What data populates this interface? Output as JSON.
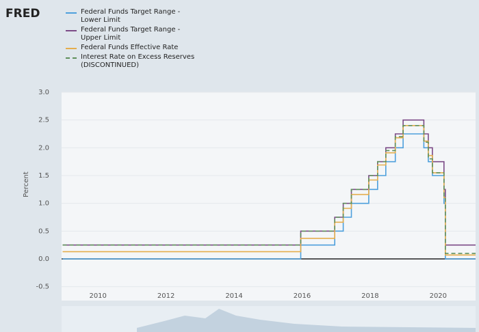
{
  "brand": "FRED",
  "chart_data": {
    "type": "line",
    "y_label": "Percent",
    "x": [
      2008.96,
      2015.96,
      2015.96,
      2016.96,
      2016.96,
      2017.21,
      2017.21,
      2017.45,
      2017.45,
      2017.96,
      2017.96,
      2018.22,
      2018.22,
      2018.46,
      2018.46,
      2018.74,
      2018.74,
      2018.97,
      2018.97,
      2019.58,
      2019.58,
      2019.71,
      2019.71,
      2019.83,
      2019.83,
      2020.17,
      2020.17,
      2020.21,
      2020.21,
      2021.1
    ],
    "series": [
      {
        "name": "Federal Funds Target Range - Lower Limit",
        "color": "#4d9fdc",
        "line_style": "solid",
        "values": [
          0,
          0,
          0.25,
          0.25,
          0.5,
          0.5,
          0.75,
          0.75,
          1.0,
          1.0,
          1.25,
          1.25,
          1.5,
          1.5,
          1.75,
          1.75,
          2.0,
          2.0,
          2.25,
          2.25,
          2.0,
          2.0,
          1.75,
          1.75,
          1.5,
          1.5,
          1.0,
          1.0,
          0,
          0
        ]
      },
      {
        "name": "Federal Funds Target Range - Upper Limit",
        "color": "#7b4a86",
        "line_style": "solid",
        "values": [
          0.25,
          0.25,
          0.5,
          0.5,
          0.75,
          0.75,
          1.0,
          1.0,
          1.25,
          1.25,
          1.5,
          1.5,
          1.75,
          1.75,
          2.0,
          2.0,
          2.25,
          2.25,
          2.5,
          2.5,
          2.25,
          2.25,
          2.0,
          2.0,
          1.75,
          1.75,
          1.25,
          1.25,
          0.25,
          0.25
        ]
      },
      {
        "name": "Federal Funds Effective Rate",
        "color": "#e5ad4c",
        "line_style": "solid",
        "values": [
          0.13,
          0.13,
          0.37,
          0.37,
          0.66,
          0.66,
          0.91,
          0.91,
          1.16,
          1.16,
          1.42,
          1.42,
          1.69,
          1.69,
          1.91,
          1.91,
          2.18,
          2.18,
          2.4,
          2.4,
          2.12,
          2.12,
          1.86,
          1.86,
          1.55,
          1.55,
          1.1,
          1.1,
          0.07,
          0.07
        ]
      },
      {
        "name": "Interest Rate on Excess Reserves (DISCONTINUED)",
        "color": "#5e8f5a",
        "line_style": "dashed",
        "values": [
          0.25,
          0.25,
          0.5,
          0.5,
          0.75,
          0.75,
          1.0,
          1.0,
          1.25,
          1.25,
          1.5,
          1.5,
          1.75,
          1.75,
          1.95,
          1.95,
          2.2,
          2.2,
          2.4,
          2.4,
          2.1,
          2.1,
          1.8,
          1.8,
          1.55,
          1.55,
          1.1,
          1.1,
          0.1,
          0.1
        ]
      }
    ],
    "xlim": [
      2008.93,
      2021.1
    ],
    "xticks": [
      2010,
      2012,
      2014,
      2016,
      2018,
      2020
    ],
    "ylim": [
      -0.75,
      3.0
    ],
    "yticks": [
      {
        "value": 3.0,
        "label": "3.0"
      },
      2.5,
      {
        "value": 2.0,
        "label": "2.0"
      },
      1.5,
      {
        "value": 1.0,
        "label": "1.0"
      },
      0.5,
      {
        "value": 0.0,
        "label": "0.0"
      },
      -0.5
    ],
    "grid": true
  }
}
